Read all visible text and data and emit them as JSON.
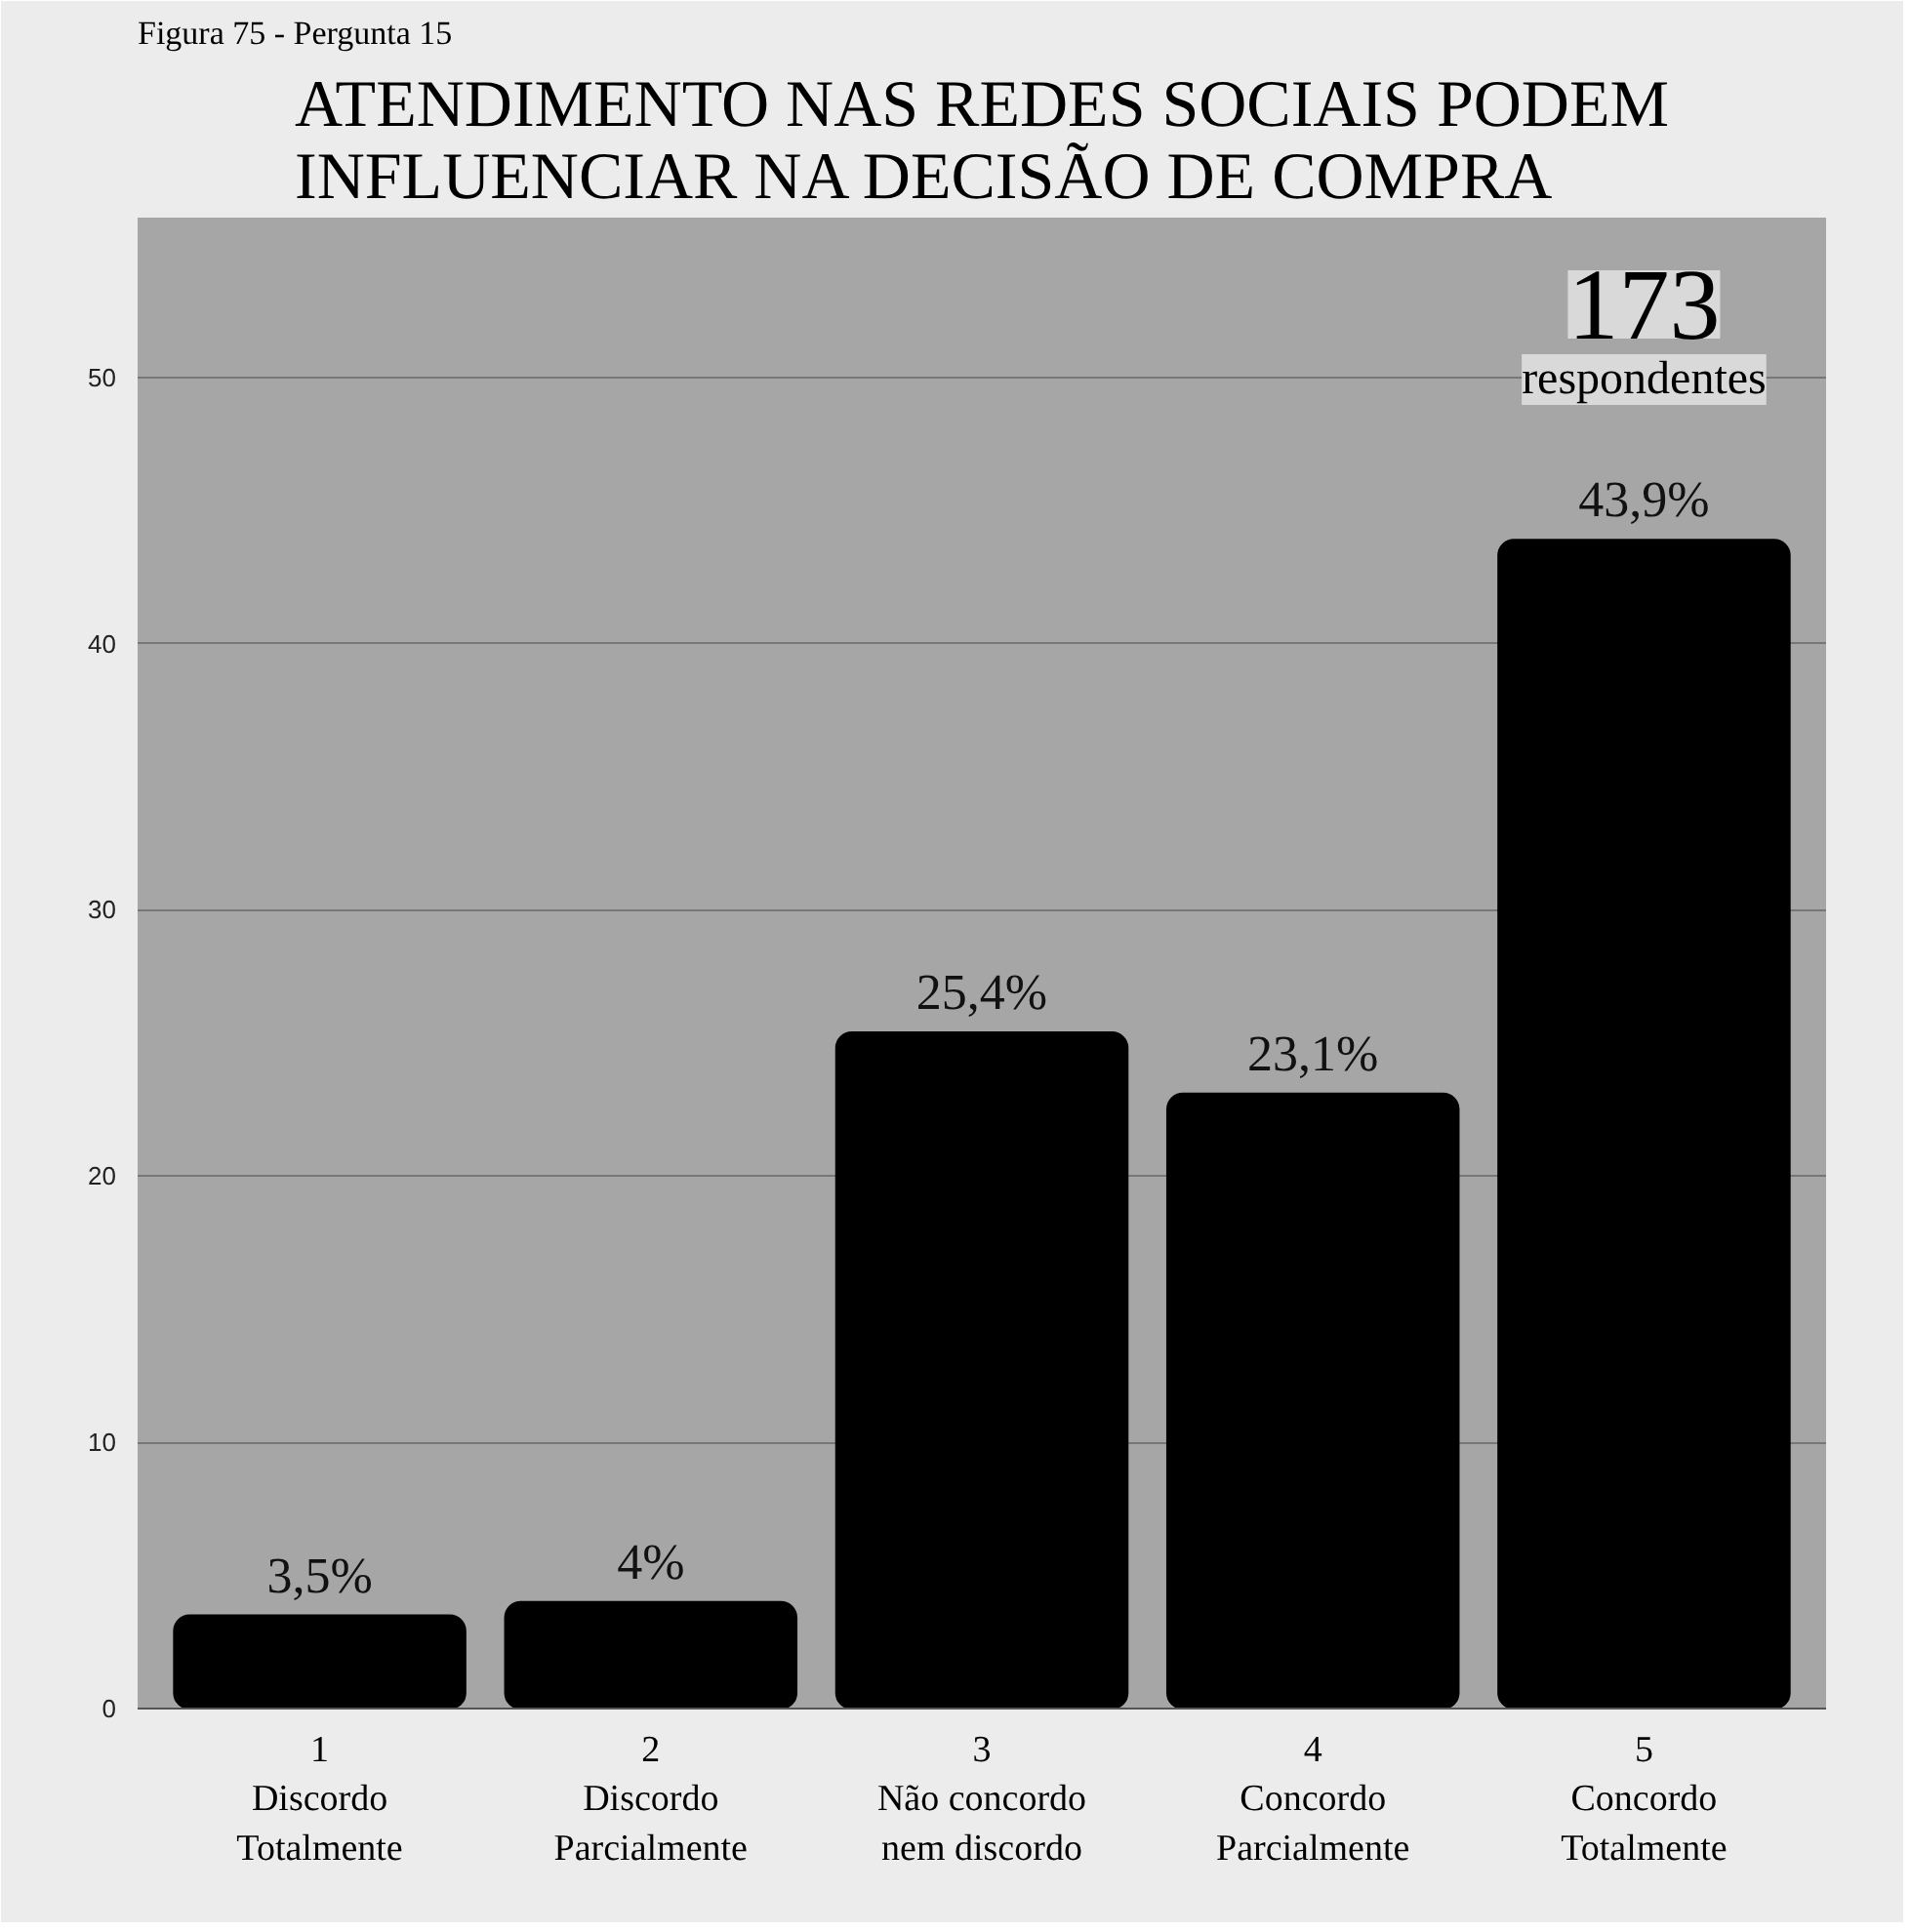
{
  "chart_data": {
    "type": "bar",
    "title": "ATENDIMENTO NAS REDES SOCIAIS PODEM INFLUENCIAR NA DECISÃO DE COMPRA",
    "categories": [
      "1\nDiscordo\nTotalmente",
      "2\nDiscordo\nParcialmente",
      "3\nNão concordo\nnem discordo",
      "4\nConcordo\nParcialmente",
      "5\nConcordo\nTotalmente"
    ],
    "values": [
      3.5,
      4,
      25.4,
      23.1,
      43.9
    ],
    "value_labels": [
      "3,5%",
      "4%",
      "25,4%",
      "23,1%",
      "43,9%"
    ],
    "color": "#000000",
    "ylim": [
      0,
      56
    ],
    "yticks": [
      0,
      10,
      20,
      30,
      40,
      50
    ],
    "grid": "y",
    "annotations": [
      "Figura 75 - Pergunta 15",
      "173\nrespondentes"
    ]
  }
}
